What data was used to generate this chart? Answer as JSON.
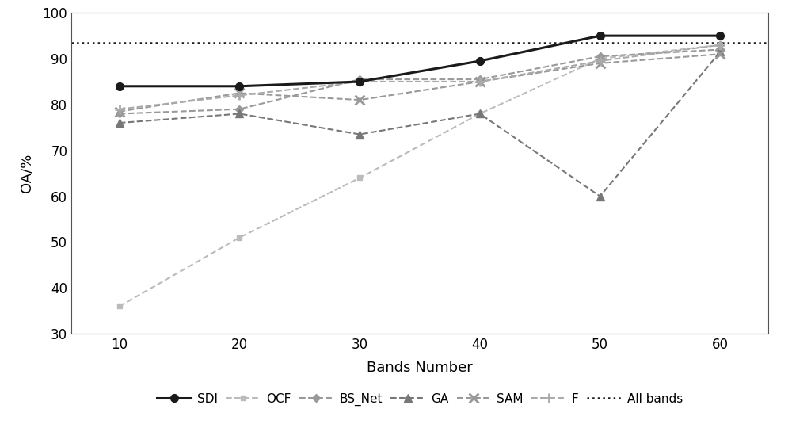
{
  "x": [
    10,
    20,
    30,
    40,
    50,
    60
  ],
  "SDI": [
    84.0,
    84.0,
    85.0,
    89.5,
    95.0,
    95.0
  ],
  "OCF": [
    36.0,
    51.0,
    64.0,
    78.0,
    90.0,
    93.0
  ],
  "BS_Net": [
    78.0,
    79.0,
    85.5,
    85.5,
    90.5,
    92.0
  ],
  "GA": [
    76.0,
    78.0,
    73.5,
    78.0,
    60.0,
    91.5
  ],
  "SAM": [
    78.5,
    82.5,
    81.0,
    85.0,
    89.0,
    91.0
  ],
  "F": [
    79.0,
    82.0,
    85.0,
    85.0,
    89.5,
    93.0
  ],
  "All_bands": 93.5,
  "ylim": [
    30,
    100
  ],
  "yticks": [
    30,
    40,
    50,
    60,
    70,
    80,
    90,
    100
  ],
  "xlabel": "Bands Number",
  "ylabel": "OA/%",
  "color_SDI": "#1a1a1a",
  "color_OCF": "#bbbbbb",
  "color_BS_Net": "#999999",
  "color_GA": "#777777",
  "color_SAM": "#999999",
  "color_F": "#aaaaaa",
  "color_allbands": "#1a1a1a",
  "legend_labels": [
    "SDI",
    "OCF",
    "BS_Net",
    "GA",
    "SAM",
    "F",
    "All bands"
  ]
}
